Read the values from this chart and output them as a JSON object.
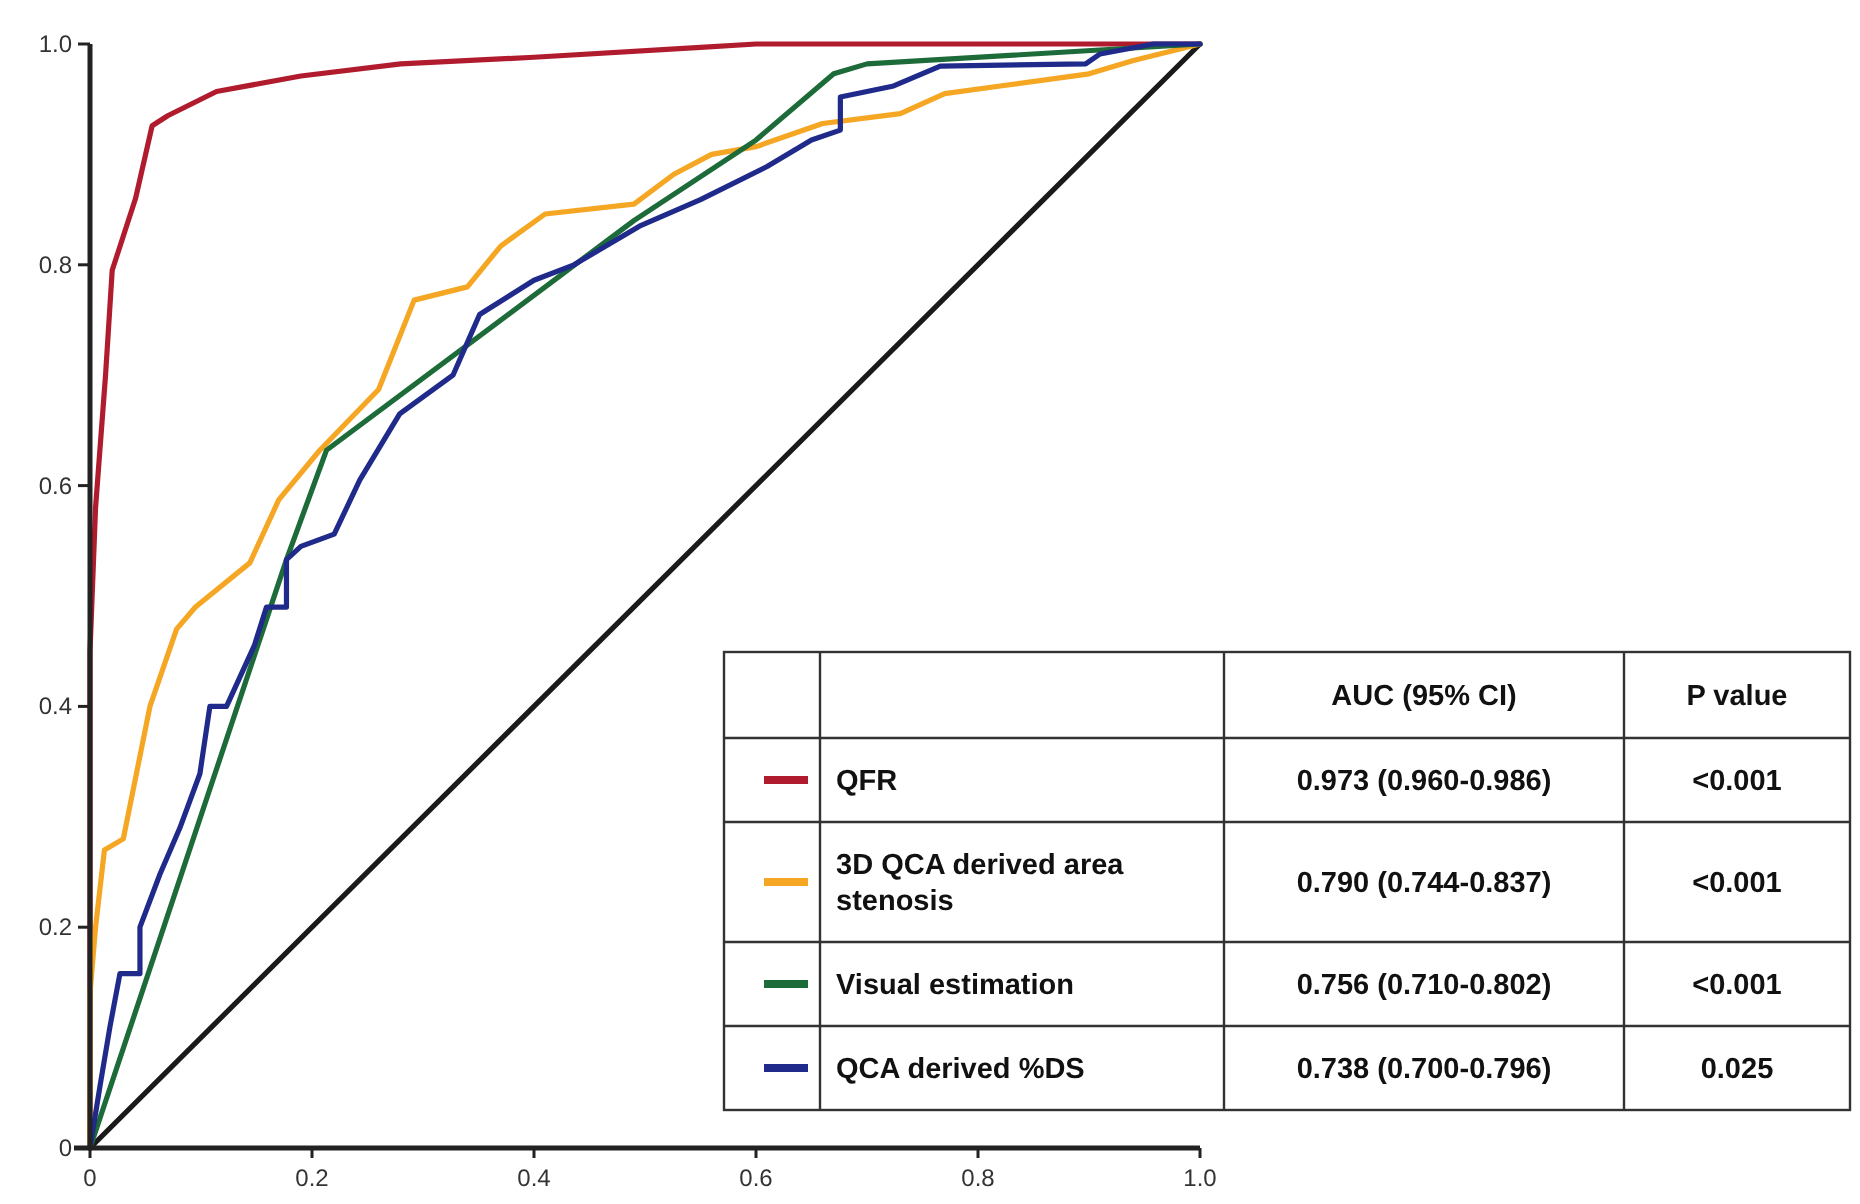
{
  "chart_data": {
    "type": "line",
    "xlim": [
      0,
      1
    ],
    "ylim": [
      0,
      1
    ],
    "xticks": [
      0,
      0.2,
      0.4,
      0.6,
      0.8,
      {
        "value": 1,
        "label": "1.0"
      }
    ],
    "yticks": [
      0,
      0.2,
      0.4,
      0.6,
      0.8,
      {
        "value": 1,
        "label": "1.0"
      }
    ],
    "grid": false,
    "legend": "bottom right",
    "line_style": "solid",
    "series": [
      {
        "name": "QFR",
        "color": "#b01c2e",
        "x": [
          0,
          0,
          0.005,
          0.014,
          0.02,
          0.041,
          0.056,
          0.07,
          0.114,
          0.19,
          0.28,
          0.4,
          0.55,
          0.6,
          1
        ],
        "values": [
          0,
          0.45,
          0.58,
          0.7,
          0.795,
          0.86,
          0.926,
          0.935,
          0.957,
          0.971,
          0.982,
          0.988,
          0.997,
          1,
          1
        ]
      },
      {
        "name": "3D QCA derived area stenosis",
        "color": "#f5a623",
        "x": [
          0,
          0,
          0.005,
          0.013,
          0.03,
          0.04,
          0.054,
          0.078,
          0.095,
          0.144,
          0.17,
          0.207,
          0.26,
          0.292,
          0.34,
          0.37,
          0.41,
          0.49,
          0.526,
          0.56,
          0.6,
          0.66,
          0.73,
          0.77,
          0.82,
          0.9,
          0.94,
          1
        ],
        "values": [
          0,
          0.14,
          0.2,
          0.27,
          0.28,
          0.33,
          0.4,
          0.47,
          0.49,
          0.53,
          0.587,
          0.632,
          0.687,
          0.768,
          0.78,
          0.817,
          0.846,
          0.855,
          0.882,
          0.9,
          0.907,
          0.928,
          0.937,
          0.955,
          0.962,
          0.973,
          0.985,
          1
        ]
      },
      {
        "name": "Visual estimation",
        "color": "#1e6b3a",
        "x": [
          0,
          0.177,
          0.213,
          0.49,
          0.6,
          0.67,
          0.7,
          1
        ],
        "values": [
          0,
          0.533,
          0.632,
          0.84,
          0.913,
          0.973,
          0.982,
          1
        ]
      },
      {
        "name": "QCA derived %DS",
        "color": "#1f2a8a",
        "x": [
          0,
          0.009,
          0.018,
          0.027,
          0.045,
          0.045,
          0.063,
          0.081,
          0.099,
          0.108,
          0.123,
          0.148,
          0.159,
          0.177,
          0.177,
          0.19,
          0.22,
          0.243,
          0.279,
          0.327,
          0.351,
          0.4,
          0.436,
          0.495,
          0.55,
          0.61,
          0.65,
          0.676,
          0.676,
          0.724,
          0.766,
          0.897,
          0.91,
          0.958,
          1
        ],
        "values": [
          0,
          0.056,
          0.11,
          0.158,
          0.158,
          0.2,
          0.248,
          0.29,
          0.339,
          0.4,
          0.4,
          0.455,
          0.49,
          0.49,
          0.533,
          0.545,
          0.556,
          0.605,
          0.665,
          0.7,
          0.755,
          0.786,
          0.8,
          0.835,
          0.859,
          0.889,
          0.913,
          0.922,
          0.952,
          0.962,
          0.98,
          0.982,
          0.991,
          1,
          1
        ]
      },
      {
        "color": "#1a1a1a",
        "x": [
          0,
          1
        ],
        "values": [
          0,
          1
        ]
      }
    ],
    "annotations": [
      "AUC (95% CI)",
      "P value",
      "0.973 (0.960-0.986)",
      "<0.001",
      "0.790 (0.744-0.837)",
      "<0.001",
      "0.756 (0.710-0.802)",
      "<0.001",
      "0.738 (0.700-0.796)",
      "0.025"
    ]
  }
}
